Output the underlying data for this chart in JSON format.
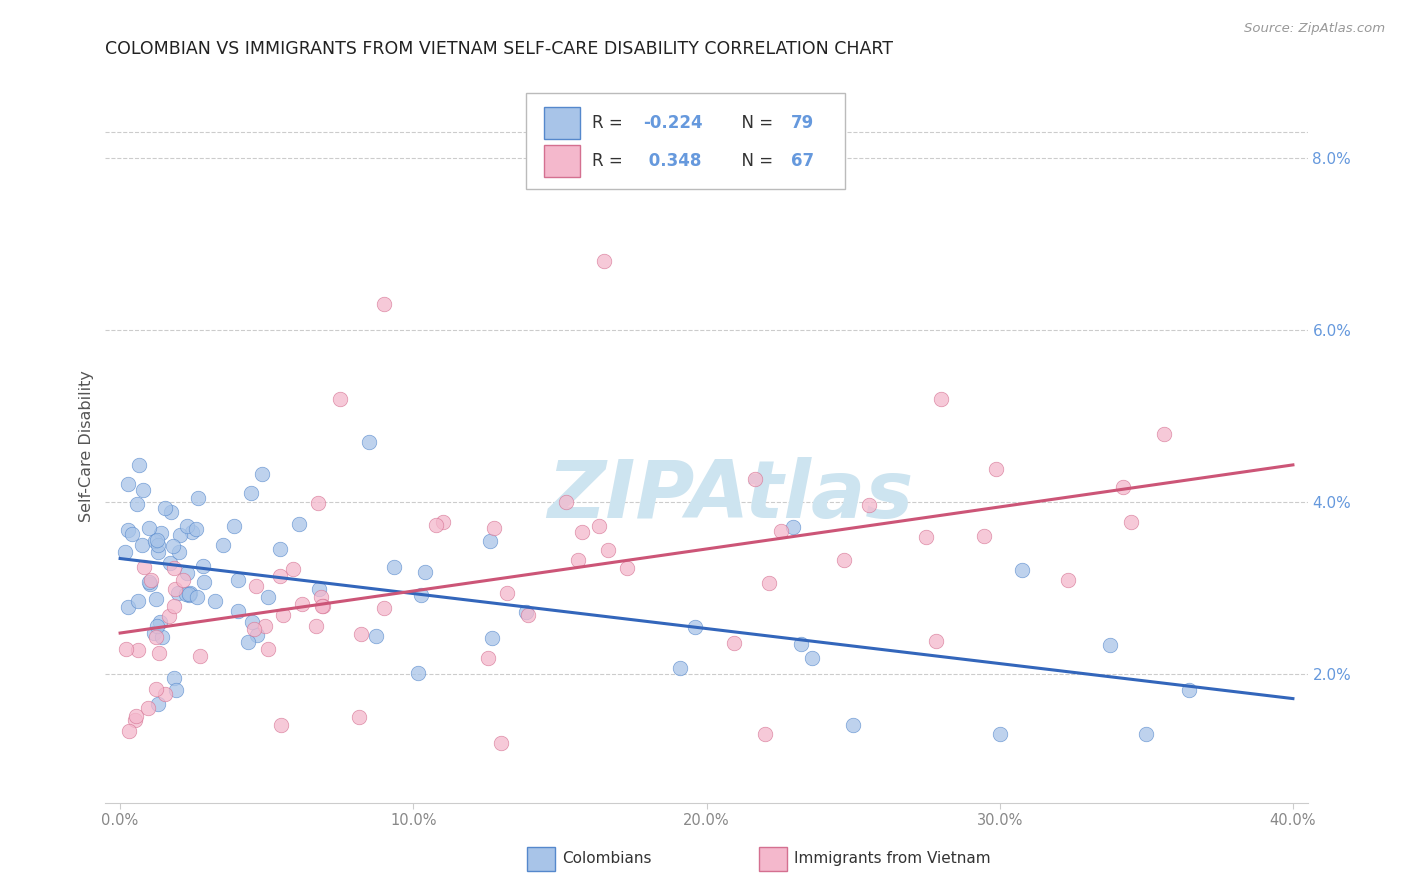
{
  "title": "COLOMBIAN VS IMMIGRANTS FROM VIETNAM SELF-CARE DISABILITY CORRELATION CHART",
  "source": "Source: ZipAtlas.com",
  "ylabel": "Self-Care Disability",
  "right_yticks": [
    "8.0%",
    "6.0%",
    "4.0%",
    "2.0%"
  ],
  "right_ytick_vals": [
    0.08,
    0.06,
    0.04,
    0.02
  ],
  "xlim": [
    -0.005,
    0.405
  ],
  "ylim": [
    0.005,
    0.088
  ],
  "colombian_R": "-0.224",
  "colombian_N": "79",
  "vietnam_R": "0.348",
  "vietnam_N": "67",
  "color_colombian_fill": "#a8c4e8",
  "color_colombian_edge": "#5588cc",
  "color_vietnam_fill": "#f4b8cc",
  "color_vietnam_edge": "#d47090",
  "color_line_colombian": "#3366bb",
  "color_line_vietnam": "#cc5577",
  "background_color": "#ffffff",
  "watermark_color": "#cde4f0",
  "grid_color": "#cccccc",
  "ytick_color": "#6699dd",
  "xtick_color": "#888888",
  "ylabel_color": "#555555",
  "legend_line_color": "#bbbbbb",
  "scatter_size": 110,
  "scatter_alpha": 0.75,
  "line_width": 2.2
}
